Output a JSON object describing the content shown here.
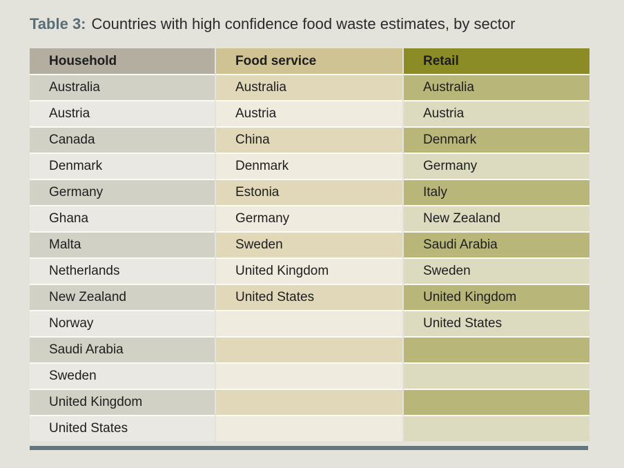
{
  "title": {
    "label": "Table 3:",
    "text": "Countries with high confidence food waste estimates, by sector"
  },
  "headers": [
    "Household",
    "Food service",
    "Retail"
  ],
  "rows": [
    [
      "Australia",
      "Australia",
      "Australia"
    ],
    [
      "Austria",
      "Austria",
      "Austria"
    ],
    [
      "Canada",
      "China",
      "Denmark"
    ],
    [
      "Denmark",
      "Denmark",
      "Germany"
    ],
    [
      "Germany",
      "Estonia",
      "Italy"
    ],
    [
      "Ghana",
      "Germany",
      "New Zealand"
    ],
    [
      "Malta",
      "Sweden",
      "Saudi Arabia"
    ],
    [
      "Netherlands",
      "United Kingdom",
      "Sweden"
    ],
    [
      "New Zealand",
      "United States",
      "United Kingdom"
    ],
    [
      "Norway",
      "",
      "United States"
    ],
    [
      "Saudi Arabia",
      "",
      ""
    ],
    [
      "Sweden",
      "",
      ""
    ],
    [
      "United Kingdom",
      "",
      ""
    ],
    [
      "United States",
      "",
      ""
    ]
  ],
  "colors": {
    "household_header": "#b3ae9f",
    "foodservice_header": "#cfc293",
    "retail_header": "#8c8c27",
    "title_label": "#5a6d74",
    "bottom_rule": "#66767e"
  }
}
